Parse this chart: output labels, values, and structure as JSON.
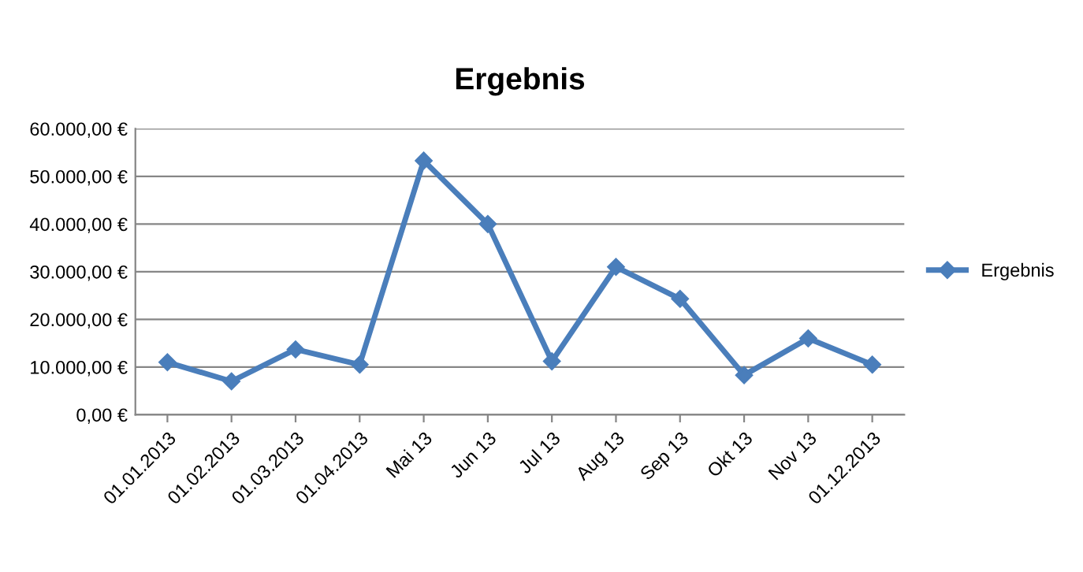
{
  "chart_data": {
    "type": "line",
    "title": "Ergebnis",
    "categories": [
      "01.01.2013",
      "01.02.2013",
      "01.03.2013",
      "01.04.2013",
      "Mai 13",
      "Jun 13",
      "Jul 13",
      "Aug 13",
      "Sep 13",
      "Okt 13",
      "Nov 13",
      "01.12.2013"
    ],
    "series": [
      {
        "name": "Ergebnis",
        "color": "#4a7ebb",
        "values": [
          11000,
          7000,
          13700,
          10500,
          53300,
          40000,
          11200,
          31000,
          24300,
          8300,
          16000,
          10500
        ]
      }
    ],
    "ylim": [
      0,
      60000
    ],
    "yticks": [
      {
        "value": 0,
        "label": "0,00 €"
      },
      {
        "value": 10000,
        "label": "10.000,00 €"
      },
      {
        "value": 20000,
        "label": "20.000,00 €"
      },
      {
        "value": 30000,
        "label": "30.000,00 €"
      },
      {
        "value": 40000,
        "label": "40.000,00 €"
      },
      {
        "value": 50000,
        "label": "50.000,00 €"
      },
      {
        "value": 60000,
        "label": "60.000,00 €"
      }
    ],
    "grid": "y",
    "legend": "right",
    "marker": "diamond",
    "line_style": "solid"
  }
}
